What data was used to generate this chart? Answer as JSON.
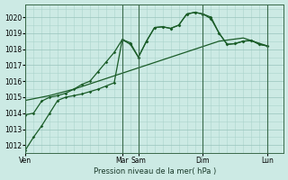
{
  "background_color": "#cceae4",
  "grid_color": "#aad4cc",
  "grid_color_major": "#99c4bc",
  "line_color": "#1a5c28",
  "title": "Pression niveau de la mer( hPa )",
  "ylim": [
    1011.5,
    1020.8
  ],
  "yticks": [
    1012,
    1013,
    1014,
    1015,
    1016,
    1017,
    1018,
    1019,
    1020
  ],
  "xlim": [
    0,
    32
  ],
  "xtick_positions": [
    0,
    12,
    14,
    22,
    30
  ],
  "xtick_labels": [
    "Ven",
    "Mar",
    "Sam",
    "Dim",
    "Lun"
  ],
  "vline_positions": [
    0,
    12,
    14,
    22,
    30
  ],
  "series1_x": [
    0,
    1,
    2,
    3,
    4,
    5,
    6,
    7,
    8,
    9,
    10,
    11,
    12,
    13,
    14,
    15,
    16,
    17,
    18,
    19,
    20,
    21,
    22,
    23,
    24,
    25,
    26,
    27,
    28,
    29,
    30
  ],
  "series1_y": [
    1011.7,
    1012.5,
    1013.2,
    1014.0,
    1014.8,
    1015.0,
    1015.1,
    1015.2,
    1015.35,
    1015.5,
    1015.7,
    1015.9,
    1018.6,
    1018.3,
    1017.5,
    1018.5,
    1019.35,
    1019.4,
    1019.3,
    1019.5,
    1020.2,
    1020.3,
    1020.2,
    1019.9,
    1019.0,
    1018.3,
    1018.35,
    1018.5,
    1018.55,
    1018.3,
    1018.2
  ],
  "series2_x": [
    0,
    1,
    2,
    3,
    4,
    5,
    6,
    7,
    8,
    9,
    10,
    11,
    12,
    13,
    14,
    15,
    16,
    17,
    18,
    19,
    20,
    21,
    22,
    23,
    24,
    25,
    26,
    27,
    28,
    29,
    30
  ],
  "series2_y": [
    1013.9,
    1014.0,
    1014.75,
    1015.0,
    1015.1,
    1015.25,
    1015.5,
    1015.8,
    1016.0,
    1016.6,
    1017.2,
    1017.8,
    1018.6,
    1018.4,
    1017.5,
    1018.5,
    1019.35,
    1019.4,
    1019.3,
    1019.5,
    1020.2,
    1020.3,
    1020.2,
    1020.0,
    1019.0,
    1018.3,
    1018.35,
    1018.5,
    1018.55,
    1018.3,
    1018.2
  ],
  "series3_x": [
    0,
    3,
    6,
    9,
    12,
    15,
    18,
    21,
    24,
    27,
    30
  ],
  "series3_y": [
    1014.8,
    1015.1,
    1015.5,
    1016.0,
    1016.5,
    1017.0,
    1017.5,
    1018.0,
    1018.5,
    1018.7,
    1018.2
  ]
}
